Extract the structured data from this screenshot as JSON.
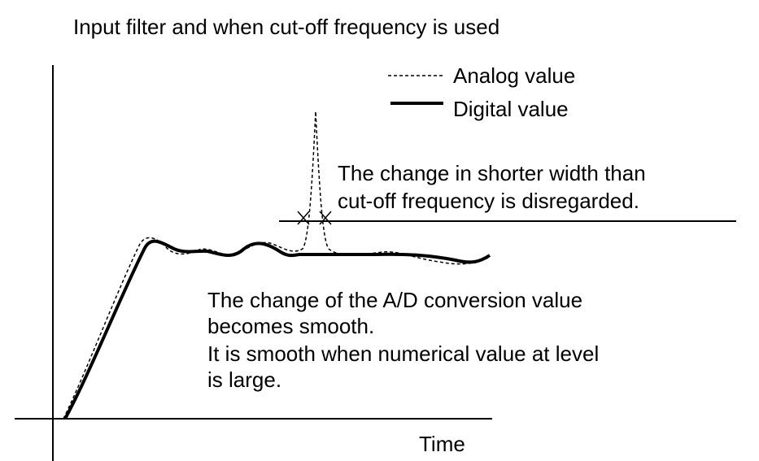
{
  "title": "Input filter and when cut-off frequency is used",
  "legend": [
    "Analog value",
    "Digital value"
  ],
  "annotation_cutoff": [
    "The change in shorter width than",
    "cut-off frequency is disregarded."
  ],
  "annotation_smooth": [
    "The change of the A/D conversion value",
    "becomes smooth.",
    "It is smooth when numerical value at level",
    "is large."
  ],
  "x_axis_label": "Time"
}
